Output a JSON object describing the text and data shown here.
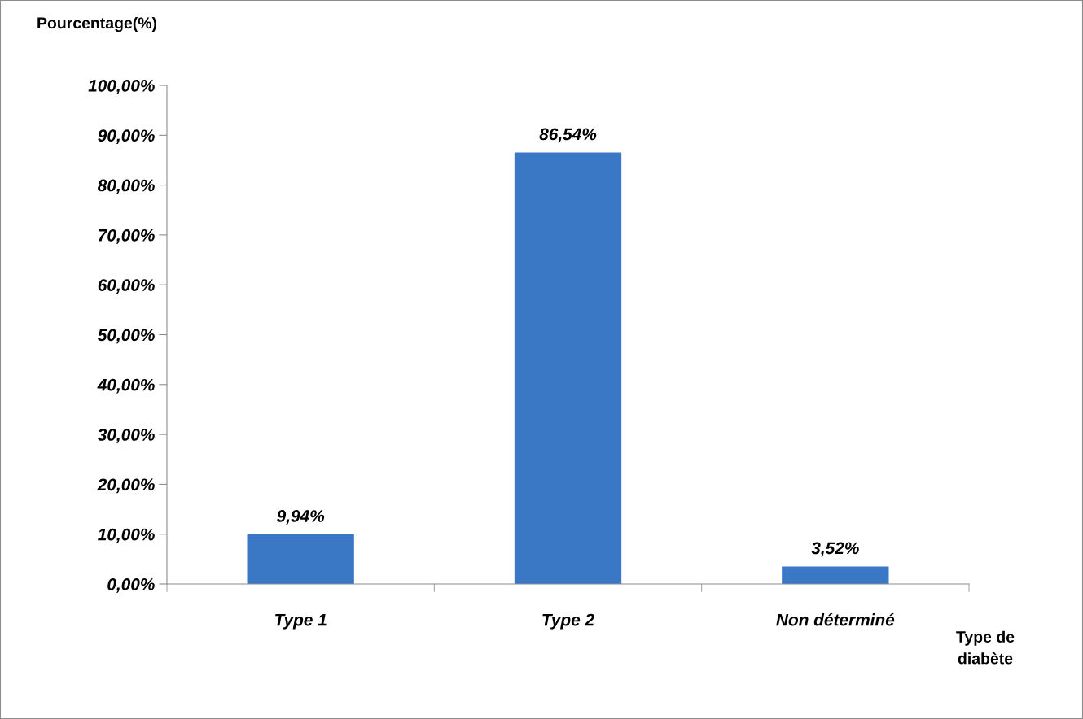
{
  "chart_data": {
    "type": "bar",
    "ylabel": "Pourcentage(%)",
    "xlabel": "Type de\ndiabète",
    "categories": [
      "Type 1",
      "Type 2",
      "Non déterminé"
    ],
    "values": [
      9.94,
      86.54,
      3.52
    ],
    "value_labels": [
      "9,94%",
      "86,54%",
      "3,52%"
    ],
    "color": "#3a78c6",
    "ylim": [
      0,
      100
    ],
    "yticks": [
      {
        "value": 0,
        "label": "0,00%"
      },
      {
        "value": 10,
        "label": "10,00%"
      },
      {
        "value": 20,
        "label": "20,00%"
      },
      {
        "value": 30,
        "label": "30,00%"
      },
      {
        "value": 40,
        "label": "40,00%"
      },
      {
        "value": 50,
        "label": "50,00%"
      },
      {
        "value": 60,
        "label": "60,00%"
      },
      {
        "value": 70,
        "label": "70,00%"
      },
      {
        "value": 80,
        "label": "80,00%"
      },
      {
        "value": 90,
        "label": "90,00%"
      },
      {
        "value": 100,
        "label": "100,00%"
      }
    ],
    "grid": false,
    "legend": false
  }
}
